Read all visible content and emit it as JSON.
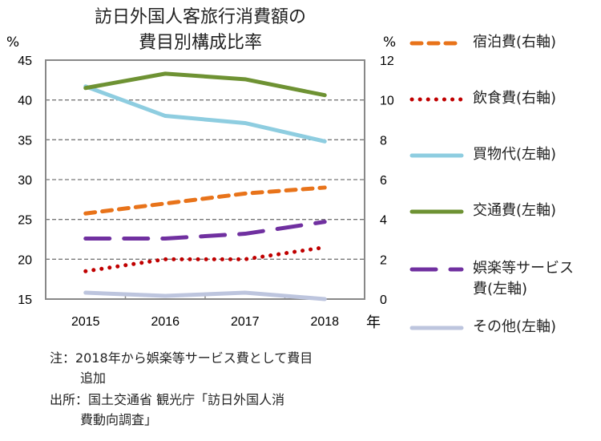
{
  "chart_data": {
    "type": "line",
    "title": "訪日外国人客旅行消費額の費目別構成比率",
    "title_lines": [
      "訪日外国人客旅行消費額の",
      "費目別構成比率"
    ],
    "categories": [
      "2015",
      "2016",
      "2017",
      "2018"
    ],
    "xlabel": "年",
    "ylabel_left": "%",
    "ylabel_right": "%",
    "ylim_left": [
      15,
      45
    ],
    "ylim_right": [
      0,
      12
    ],
    "yticks_left": [
      "15",
      "20",
      "25",
      "30",
      "35",
      "40",
      "45"
    ],
    "yticks_right": [
      "0",
      "2",
      "4",
      "6",
      "8",
      "10",
      "12"
    ],
    "grid": true,
    "legend_position": "right",
    "series": [
      {
        "name": "宿泊費(右軸)",
        "axis": "right",
        "color": "#E8731A",
        "dash": "short",
        "values": [
          4.3,
          4.8,
          5.3,
          5.6
        ]
      },
      {
        "name": "飲食費(右軸)",
        "axis": "right",
        "color": "#C00000",
        "dash": "dot",
        "values": [
          1.4,
          2.0,
          2.0,
          2.6
        ]
      },
      {
        "name": "買物代(左軸)",
        "axis": "left",
        "color": "#8ECDE0",
        "dash": "solid",
        "values": [
          41.7,
          38.0,
          37.1,
          34.8
        ]
      },
      {
        "name": "交通費(左軸)",
        "axis": "left",
        "color": "#6E9233",
        "dash": "solid",
        "values": [
          41.5,
          43.3,
          42.6,
          40.6
        ]
      },
      {
        "name": "娯楽等サービス費(左軸)",
        "name_lines": [
          "娯楽等サービス",
          "費(左軸)"
        ],
        "axis": "left",
        "color": "#7030A0",
        "dash": "long",
        "values": [
          22.6,
          22.6,
          23.2,
          24.7
        ]
      },
      {
        "name": "その他(左軸)",
        "axis": "left",
        "color": "#BDC5DE",
        "dash": "solid",
        "values": [
          15.8,
          15.4,
          15.8,
          15.0
        ]
      }
    ]
  },
  "notes": [
    "注：2018年から娯楽等サービス費として費目",
    "追加",
    "出所：国土交通省 観光庁「訪日外国人消",
    "費動向調査」"
  ]
}
